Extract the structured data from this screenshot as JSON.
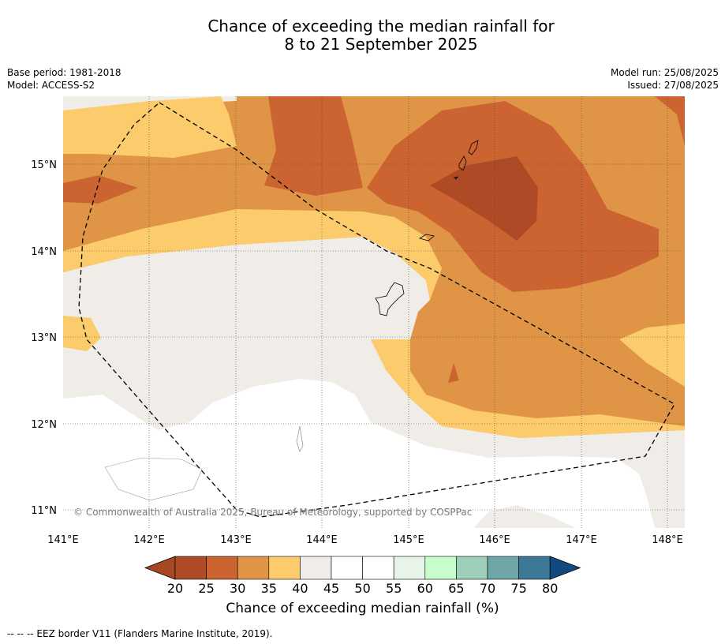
{
  "title_line1": "Chance of exceeding the median rainfall for",
  "title_line2": "8 to 21 September 2025",
  "meta": {
    "base_period": "Base period: 1981-2018",
    "model": "Model: ACCESS-S2",
    "model_run": "Model run: 25/08/2025",
    "issued": "Issued: 27/08/2025"
  },
  "map": {
    "lon_ticks": [
      "141°E",
      "142°E",
      "143°E",
      "144°E",
      "145°E",
      "146°E",
      "147°E",
      "148°E"
    ],
    "lat_ticks": [
      "15°N",
      "14°N",
      "13°N",
      "12°N",
      "11°N"
    ],
    "copyright": "© Commonwealth of Australia 2025, Bureau of Meteorology, supported by COSPPac"
  },
  "colorbar": {
    "labels": [
      "20",
      "25",
      "30",
      "35",
      "40",
      "45",
      "50",
      "55",
      "60",
      "65",
      "70",
      "75",
      "80"
    ],
    "colors": [
      "#a84822",
      "#ae4a25",
      "#cb6430",
      "#e09546",
      "#fccb6b",
      "#f0ede8",
      "#ffffff",
      "#ffffff",
      "#e8f4e8",
      "#c6fdca",
      "#9ecfb8",
      "#6fa6a6",
      "#3e7898",
      "#124a80"
    ],
    "title": "Chance of exceeding median rainfall (%)"
  },
  "footer": "--  --  -- EEZ border V11 (Flanders Marine Institute, 2019)."
}
